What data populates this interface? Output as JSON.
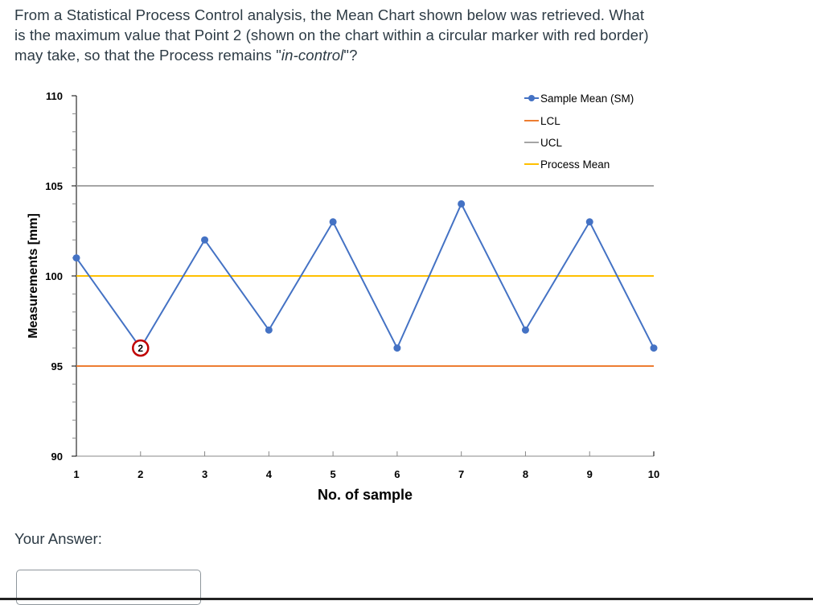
{
  "question": {
    "text_before": "From a Statistical Process Control analysis, the Mean Chart shown below was retrieved. What is the maximum value that Point 2 (shown on the chart within a circular marker with red border) may take, so that the Process remains \"",
    "text_italic": "in-control",
    "text_after": "\"?"
  },
  "answer": {
    "label": "Your Answer:",
    "value": "",
    "placeholder": ""
  },
  "colors": {
    "sample_mean": "#4472c4",
    "lcl": "#ed7d31",
    "ucl": "#a5a5a5",
    "process_mean": "#ffc000",
    "highlight_marker": "#c00000"
  },
  "chart_data": {
    "type": "line",
    "title": "",
    "xlabel": "No. of sample",
    "ylabel": "Measurements [mm]",
    "x": [
      1,
      2,
      3,
      4,
      5,
      6,
      7,
      8,
      9,
      10
    ],
    "xticks": [
      "1",
      "2",
      "3",
      "4",
      "5",
      "6",
      "7",
      "8",
      "9",
      "10"
    ],
    "yticks": [
      "90",
      "95",
      "100",
      "105",
      "110"
    ],
    "ylim": [
      90,
      110
    ],
    "grid": false,
    "legend_position": "top-right",
    "series": [
      {
        "name": "Sample Mean (SM)",
        "values": [
          101,
          96,
          102,
          97,
          103,
          96,
          104,
          97,
          103,
          96
        ],
        "marker": "circle"
      },
      {
        "name": "LCL",
        "values": [
          95,
          95,
          95,
          95,
          95,
          95,
          95,
          95,
          95,
          95
        ]
      },
      {
        "name": "UCL",
        "values": [
          105,
          105,
          105,
          105,
          105,
          105,
          105,
          105,
          105,
          105
        ]
      },
      {
        "name": "Process Mean",
        "values": [
          100,
          100,
          100,
          100,
          100,
          100,
          100,
          100,
          100,
          100
        ]
      }
    ],
    "annotations": [
      {
        "point": 2,
        "label": "2",
        "style": "circle with red border"
      }
    ]
  }
}
